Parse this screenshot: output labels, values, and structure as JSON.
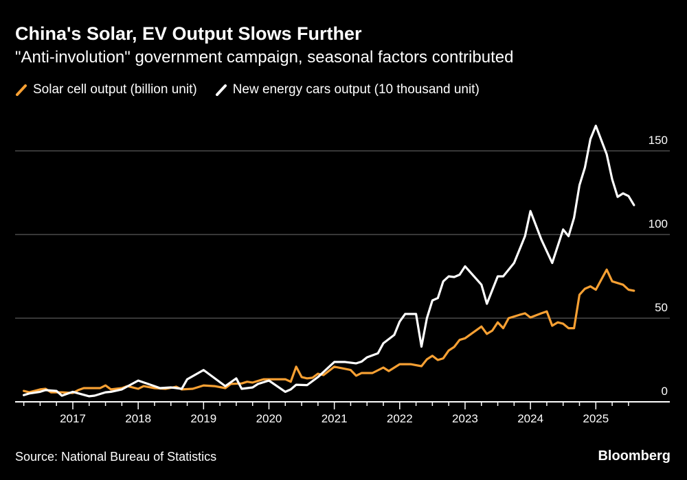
{
  "header": {
    "title": "China's Solar, EV Output Slows Further",
    "subtitle": "\"Anti-involution\" government campaign, seasonal factors contributed"
  },
  "footer": {
    "source": "Source: National Bureau of Statistics",
    "brand": "Bloomberg"
  },
  "chart_data": {
    "type": "line",
    "title": "China's Solar, EV Output Slows Further",
    "subtitle": "\"Anti-involution\" government campaign, seasonal factors contributed",
    "legend_placement": "top-left",
    "grid": "horizontal",
    "y_axis_side": "right",
    "ylim": [
      0,
      170
    ],
    "xlim": [
      "2016-03",
      "2025-12"
    ],
    "x_ticks": [
      "2017",
      "2018",
      "2019",
      "2020",
      "2021",
      "2022",
      "2023",
      "2024",
      "2025"
    ],
    "y_ticks": [
      "0",
      "50",
      "100",
      "150"
    ],
    "series": [
      {
        "name": "Solar cell output (billion unit)",
        "color": "#f7a033",
        "points": [
          [
            "2016-04",
            6.5
          ],
          [
            "2016-05",
            5.7
          ],
          [
            "2016-07",
            7.4
          ],
          [
            "2016-08",
            7.8
          ],
          [
            "2016-09",
            5.7
          ],
          [
            "2016-11",
            5.7
          ],
          [
            "2017-01",
            5.3
          ],
          [
            "2017-02",
            7
          ],
          [
            "2017-03",
            8.2
          ],
          [
            "2017-06",
            8.2
          ],
          [
            "2017-07",
            9.8
          ],
          [
            "2017-08",
            7.4
          ],
          [
            "2017-10",
            8.2
          ],
          [
            "2017-11",
            9.4
          ],
          [
            "2018-01",
            7.8
          ],
          [
            "2018-02",
            9.4
          ],
          [
            "2018-04",
            8.2
          ],
          [
            "2018-06",
            7.8
          ],
          [
            "2018-08",
            9
          ],
          [
            "2018-09",
            7.4
          ],
          [
            "2018-11",
            7.8
          ],
          [
            "2019-01",
            9.8
          ],
          [
            "2019-03",
            9.4
          ],
          [
            "2019-05",
            8.2
          ],
          [
            "2019-06",
            10.7
          ],
          [
            "2019-08",
            11
          ],
          [
            "2019-09",
            12
          ],
          [
            "2019-10",
            11.5
          ],
          [
            "2019-12",
            13.5
          ],
          [
            "2020-02",
            13.5
          ],
          [
            "2020-04",
            13.5
          ],
          [
            "2020-05",
            12
          ],
          [
            "2020-06",
            21
          ],
          [
            "2020-07",
            14.8
          ],
          [
            "2020-08",
            14
          ],
          [
            "2020-09",
            14.4
          ],
          [
            "2020-10",
            16.8
          ],
          [
            "2020-11",
            16
          ],
          [
            "2021-01",
            21
          ],
          [
            "2021-03",
            19.7
          ],
          [
            "2021-04",
            19
          ],
          [
            "2021-05",
            15.6
          ],
          [
            "2021-06",
            17.2
          ],
          [
            "2021-08",
            17.2
          ],
          [
            "2021-10",
            20.5
          ],
          [
            "2021-11",
            18.4
          ],
          [
            "2022-01",
            22.5
          ],
          [
            "2022-03",
            22.5
          ],
          [
            "2022-05",
            21.3
          ],
          [
            "2022-06",
            25.4
          ],
          [
            "2022-07",
            27.5
          ],
          [
            "2022-08",
            25
          ],
          [
            "2022-09",
            26
          ],
          [
            "2022-10",
            30.7
          ],
          [
            "2022-11",
            32.8
          ],
          [
            "2022-12",
            37
          ],
          [
            "2023-01",
            38
          ],
          [
            "2023-04",
            45
          ],
          [
            "2023-05",
            40.6
          ],
          [
            "2023-06",
            42.6
          ],
          [
            "2023-07",
            47.5
          ],
          [
            "2023-08",
            44
          ],
          [
            "2023-09",
            50
          ],
          [
            "2023-11",
            52
          ],
          [
            "2023-12",
            52.9
          ],
          [
            "2024-01",
            50.4
          ],
          [
            "2024-03",
            52.9
          ],
          [
            "2024-04",
            54
          ],
          [
            "2024-05",
            45.5
          ],
          [
            "2024-06",
            47.5
          ],
          [
            "2024-07",
            46.7
          ],
          [
            "2024-08",
            44
          ],
          [
            "2024-09",
            44
          ],
          [
            "2024-10",
            64
          ],
          [
            "2024-11",
            67.6
          ],
          [
            "2024-12",
            69
          ],
          [
            "2025-01",
            67
          ],
          [
            "2025-03",
            79
          ],
          [
            "2025-04",
            72
          ],
          [
            "2025-06",
            70
          ],
          [
            "2025-07",
            67
          ],
          [
            "2025-08",
            66.4
          ]
        ]
      },
      {
        "name": "New energy cars output (10 thousand unit)",
        "color": "#ffffff",
        "points": [
          [
            "2016-04",
            4
          ],
          [
            "2016-05",
            5
          ],
          [
            "2016-07",
            6
          ],
          [
            "2016-08",
            7
          ],
          [
            "2016-10",
            6.5
          ],
          [
            "2016-11",
            3.7
          ],
          [
            "2017-01",
            6
          ],
          [
            "2017-04",
            3.3
          ],
          [
            "2017-05",
            3.7
          ],
          [
            "2017-07",
            5.7
          ],
          [
            "2017-08",
            6
          ],
          [
            "2017-10",
            7.4
          ],
          [
            "2018-01",
            12.7
          ],
          [
            "2018-04",
            9.4
          ],
          [
            "2018-05",
            8.2
          ],
          [
            "2018-07",
            8.6
          ],
          [
            "2018-09",
            7.8
          ],
          [
            "2018-10",
            13.5
          ],
          [
            "2019-01",
            19
          ],
          [
            "2019-05",
            9.4
          ],
          [
            "2019-07",
            14
          ],
          [
            "2019-08",
            7.8
          ],
          [
            "2019-10",
            8.6
          ],
          [
            "2019-11",
            10.7
          ],
          [
            "2020-01",
            12.7
          ],
          [
            "2020-04",
            6
          ],
          [
            "2020-05",
            7.4
          ],
          [
            "2020-06",
            10.2
          ],
          [
            "2020-08",
            10
          ],
          [
            "2020-10",
            14.8
          ],
          [
            "2021-01",
            23.8
          ],
          [
            "2021-03",
            23.8
          ],
          [
            "2021-05",
            23
          ],
          [
            "2021-06",
            24
          ],
          [
            "2021-07",
            26.6
          ],
          [
            "2021-09",
            29
          ],
          [
            "2021-10",
            35
          ],
          [
            "2021-12",
            40
          ],
          [
            "2022-01",
            48
          ],
          [
            "2022-02",
            52.5
          ],
          [
            "2022-04",
            52.5
          ],
          [
            "2022-05",
            33
          ],
          [
            "2022-06",
            50
          ],
          [
            "2022-07",
            60.6
          ],
          [
            "2022-08",
            62
          ],
          [
            "2022-09",
            72
          ],
          [
            "2022-10",
            75
          ],
          [
            "2022-11",
            74.6
          ],
          [
            "2022-12",
            76
          ],
          [
            "2023-01",
            81
          ],
          [
            "2023-04",
            70
          ],
          [
            "2023-05",
            58.6
          ],
          [
            "2023-07",
            75
          ],
          [
            "2023-08",
            75
          ],
          [
            "2023-10",
            83
          ],
          [
            "2023-12",
            99
          ],
          [
            "2024-01",
            114
          ],
          [
            "2024-03",
            97
          ],
          [
            "2024-05",
            83
          ],
          [
            "2024-07",
            103
          ],
          [
            "2024-08",
            99
          ],
          [
            "2024-09",
            110
          ],
          [
            "2024-10",
            129.5
          ],
          [
            "2024-11",
            140
          ],
          [
            "2024-12",
            157
          ],
          [
            "2025-01",
            165
          ],
          [
            "2025-03",
            148
          ],
          [
            "2025-04",
            133
          ],
          [
            "2025-05",
            122.5
          ],
          [
            "2025-06",
            124.6
          ],
          [
            "2025-07",
            123
          ],
          [
            "2025-08",
            117.6
          ]
        ]
      }
    ]
  }
}
